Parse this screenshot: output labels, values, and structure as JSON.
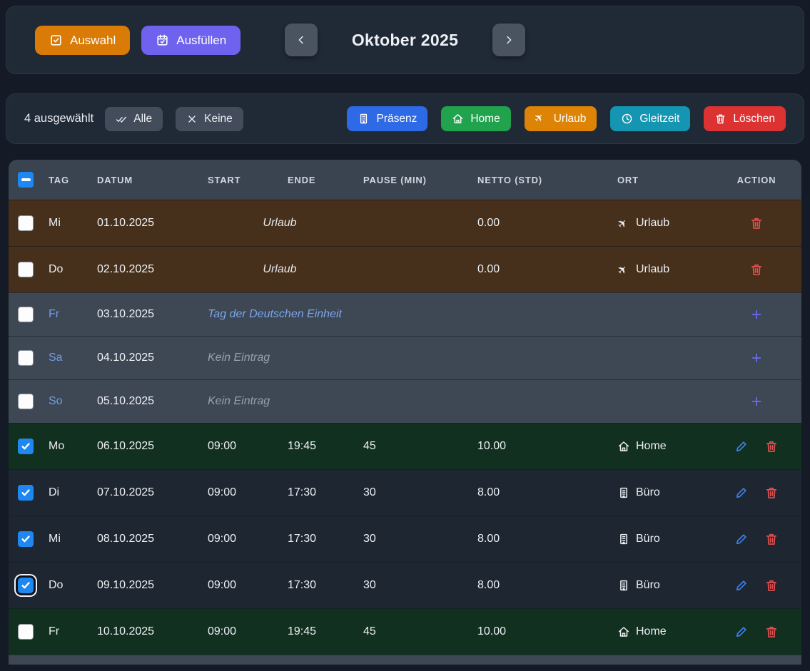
{
  "toolbar": {
    "auswahl_label": "Auswahl",
    "ausfuellen_label": "Ausfüllen",
    "month_title": "Oktober 2025"
  },
  "selection_bar": {
    "selected_count_text": "4 ausgewählt",
    "alle_label": "Alle",
    "keine_label": "Keine",
    "actions": [
      {
        "label": "Präsenz",
        "icon": "building-icon",
        "color": "#2e6ae5"
      },
      {
        "label": "Home",
        "icon": "house-icon",
        "color": "#21a24d"
      },
      {
        "label": "Urlaub",
        "icon": "plane-icon",
        "color": "#dd8306"
      },
      {
        "label": "Gleitzeit",
        "icon": "clock-icon",
        "color": "#1495b2"
      },
      {
        "label": "Löschen",
        "icon": "trash-icon",
        "color": "#dc3232"
      }
    ]
  },
  "colors": {
    "auswahl_button": "#d97b06",
    "ausfuellen_button": "#6e62ee",
    "checkbox_checked": "#1e87f0",
    "row_types": {
      "vacation": "#46301b",
      "holiday": "#3e4754",
      "weekend": "#3e4754",
      "office": "#1e2731",
      "home": "#123020"
    }
  },
  "table": {
    "columns": [
      "TAG",
      "DATUM",
      "START",
      "ENDE",
      "PAUSE (MIN)",
      "NETTO (STD)",
      "ORT",
      "ACTION"
    ],
    "header_checkbox_state": "indeterminate",
    "rows": [
      {
        "tag": "Mi",
        "datum": "01.10.2025",
        "note": "Urlaub",
        "note_type": "vacation",
        "netto": "0.00",
        "ort": "Urlaub",
        "ort_icon": "plane-icon",
        "type": "vacation",
        "checked": false,
        "actions": [
          "delete"
        ]
      },
      {
        "tag": "Do",
        "datum": "02.10.2025",
        "note": "Urlaub",
        "note_type": "vacation",
        "netto": "0.00",
        "ort": "Urlaub",
        "ort_icon": "plane-icon",
        "type": "vacation",
        "checked": false,
        "actions": [
          "delete"
        ]
      },
      {
        "tag": "Fr",
        "datum": "03.10.2025",
        "note": "Tag der Deutschen Einheit",
        "note_type": "holiday",
        "type": "holiday",
        "checked": false,
        "actions": [
          "add"
        ]
      },
      {
        "tag": "Sa",
        "datum": "04.10.2025",
        "note": "Kein Eintrag",
        "note_type": "empty",
        "type": "weekend",
        "checked": false,
        "actions": [
          "add"
        ]
      },
      {
        "tag": "So",
        "datum": "05.10.2025",
        "note": "Kein Eintrag",
        "note_type": "empty",
        "type": "weekend",
        "checked": false,
        "actions": [
          "add"
        ]
      },
      {
        "tag": "Mo",
        "datum": "06.10.2025",
        "start": "09:00",
        "ende": "19:45",
        "pause": "45",
        "netto": "10.00",
        "ort": "Home",
        "ort_icon": "house-icon",
        "type": "home",
        "checked": true,
        "actions": [
          "edit",
          "delete"
        ]
      },
      {
        "tag": "Di",
        "datum": "07.10.2025",
        "start": "09:00",
        "ende": "17:30",
        "pause": "30",
        "netto": "8.00",
        "ort": "Büro",
        "ort_icon": "building-icon",
        "type": "office",
        "checked": true,
        "actions": [
          "edit",
          "delete"
        ]
      },
      {
        "tag": "Mi",
        "datum": "08.10.2025",
        "start": "09:00",
        "ende": "17:30",
        "pause": "30",
        "netto": "8.00",
        "ort": "Büro",
        "ort_icon": "building-icon",
        "type": "office",
        "checked": true,
        "actions": [
          "edit",
          "delete"
        ]
      },
      {
        "tag": "Do",
        "datum": "09.10.2025",
        "start": "09:00",
        "ende": "17:30",
        "pause": "30",
        "netto": "8.00",
        "ort": "Büro",
        "ort_icon": "building-icon",
        "type": "office",
        "checked": true,
        "focused": true,
        "actions": [
          "edit",
          "delete"
        ]
      },
      {
        "tag": "Fr",
        "datum": "10.10.2025",
        "start": "09:00",
        "ende": "19:45",
        "pause": "45",
        "netto": "10.00",
        "ort": "Home",
        "ort_icon": "house-icon",
        "type": "home",
        "checked": false,
        "actions": [
          "edit",
          "delete"
        ]
      },
      {
        "partial": true,
        "type": "weekend"
      }
    ]
  }
}
